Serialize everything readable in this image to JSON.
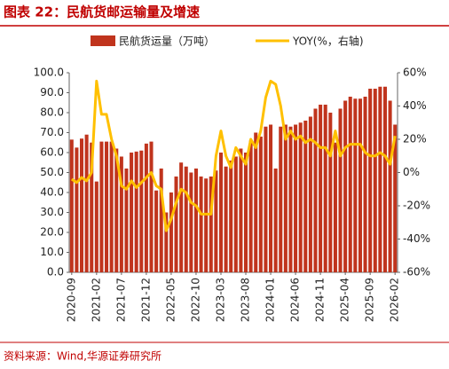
{
  "chart_data": {
    "type": "bar-line",
    "title": "图表 22：民航货邮运输量及增速",
    "source": "资料来源：Wind,华源证券研究所",
    "categories": [
      "2020-09",
      null,
      null,
      null,
      null,
      "2021-02",
      null,
      null,
      null,
      null,
      "2021-07",
      null,
      null,
      null,
      null,
      "2021-12",
      null,
      null,
      null,
      null,
      "2022-05",
      null,
      null,
      null,
      null,
      "2022-10",
      null,
      null,
      null,
      null,
      "2023-03",
      null,
      null,
      null,
      null,
      "2023-08",
      null,
      null,
      null,
      null,
      "2024-01",
      null,
      null,
      null,
      null,
      "2024-06",
      null,
      null,
      null,
      null,
      "2024-11",
      null,
      null,
      null,
      null,
      "2025-04",
      null,
      null,
      null,
      null,
      "2025-09",
      null,
      null,
      null,
      null,
      "2026-02"
    ],
    "series": [
      {
        "name": "民航货运量（万吨）",
        "color": "#c0341d",
        "values": [
          66.5,
          62.5,
          67,
          69,
          65,
          45.5,
          65.5,
          65.5,
          65.5,
          62,
          58,
          52,
          60,
          60.5,
          61,
          64.5,
          65.5,
          41,
          52,
          30,
          40,
          48,
          55,
          53,
          50,
          52,
          48,
          47,
          48,
          51,
          60,
          53,
          56,
          58,
          62,
          60,
          66,
          70,
          68,
          73,
          74,
          52,
          73,
          74,
          73,
          74,
          75,
          76,
          78,
          82,
          84,
          84,
          80,
          65,
          82,
          86,
          88,
          87,
          87,
          88,
          92,
          92,
          93,
          93,
          86,
          74
        ]
      },
      {
        "name": "YOY(%，右轴)",
        "color": "#ffc000",
        "axis": "y2",
        "values": [
          -4,
          -6,
          -3,
          -5,
          0,
          55,
          35,
          35,
          20,
          10,
          -8,
          -10,
          -5,
          -9,
          -6,
          -3,
          0,
          -8,
          -10,
          -35,
          -28,
          -18,
          -10,
          -12,
          -18,
          -20,
          -25,
          -25,
          -25,
          10,
          25,
          10,
          3,
          15,
          10,
          5,
          20,
          15,
          25,
          45,
          55,
          53,
          40,
          20,
          25,
          20,
          22,
          18,
          20,
          18,
          15,
          15,
          10,
          25,
          10,
          15,
          17,
          17,
          17,
          12,
          10,
          10,
          12,
          10,
          5,
          22
        ]
      }
    ],
    "ylim": [
      0,
      100
    ],
    "yticks": [
      {
        "value": 0,
        "label": "0.0"
      },
      {
        "value": 10,
        "label": "10.0"
      },
      {
        "value": 20,
        "label": "20.0"
      },
      {
        "value": 30,
        "label": "30.0"
      },
      {
        "value": 40,
        "label": "40.0"
      },
      {
        "value": 50,
        "label": "50.0"
      },
      {
        "value": 60,
        "label": "60.0"
      },
      {
        "value": 70,
        "label": "70.0"
      },
      {
        "value": 80,
        "label": "80.0"
      },
      {
        "value": 90,
        "label": "90.0"
      },
      {
        "value": 100,
        "label": "100.0"
      }
    ],
    "y2lim": [
      -60,
      60
    ],
    "y2ticks": [
      {
        "value": -60,
        "label": "-60%"
      },
      {
        "value": -40,
        "label": "-40%"
      },
      {
        "value": -20,
        "label": "-20%"
      },
      {
        "value": 0,
        "label": "0%"
      },
      {
        "value": 20,
        "label": "20%"
      },
      {
        "value": 40,
        "label": "40%"
      },
      {
        "value": 60,
        "label": "60%"
      }
    ]
  }
}
